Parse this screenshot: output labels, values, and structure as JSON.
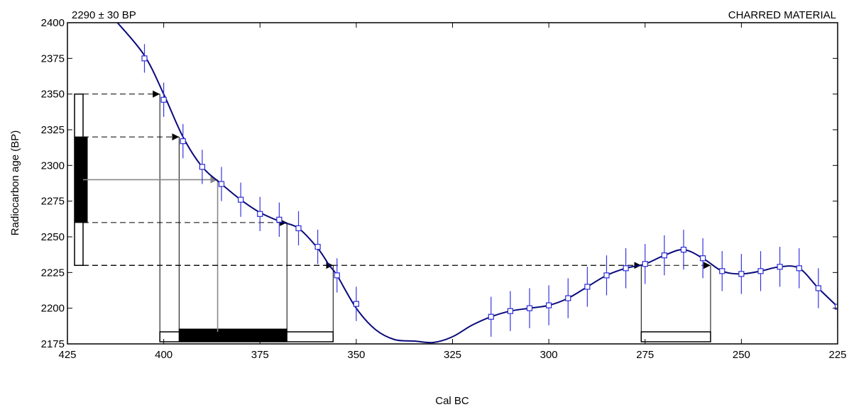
{
  "chart_data": {
    "type": "line",
    "title_left": "2290 ± 30 BP",
    "title_right": "CHARRED MATERIAL",
    "xlabel": "Cal BC",
    "ylabel": "Radiocarbon age (BP)",
    "xlim": [
      425,
      225
    ],
    "ylim": [
      2175,
      2400
    ],
    "x_ticks": [
      425,
      400,
      375,
      350,
      325,
      300,
      275,
      250,
      225
    ],
    "y_ticks": [
      2175,
      2200,
      2225,
      2250,
      2275,
      2300,
      2325,
      2350,
      2375,
      2400
    ],
    "grid": false,
    "curve": {
      "x": [
        412,
        405,
        400,
        395,
        390,
        385,
        380,
        375,
        370,
        365,
        360,
        357,
        355,
        350,
        345,
        340,
        335,
        330,
        325,
        320,
        315,
        310,
        305,
        300,
        295,
        290,
        285,
        280,
        275,
        270,
        265,
        260,
        255,
        250,
        245,
        240,
        235,
        230,
        225
      ],
      "y": [
        2400,
        2377,
        2350,
        2320,
        2299,
        2287,
        2276,
        2267,
        2261,
        2256,
        2242,
        2230,
        2223,
        2200,
        2185,
        2178,
        2177,
        2176,
        2180,
        2188,
        2194,
        2198,
        2200,
        2202,
        2207,
        2215,
        2223,
        2228,
        2231,
        2237,
        2241,
        2235,
        2226,
        2224,
        2226,
        2229,
        2228,
        2214,
        2201
      ]
    },
    "measurements": {
      "x": [
        405,
        400,
        395,
        390,
        385,
        380,
        375,
        370,
        365,
        360,
        355,
        350,
        315,
        310,
        305,
        300,
        295,
        290,
        285,
        280,
        275,
        270,
        265,
        260,
        255,
        250,
        245,
        240,
        235,
        230,
        225
      ],
      "y": [
        2375,
        2346,
        2317,
        2299,
        2287,
        2276,
        2266,
        2262,
        2256,
        2243,
        2223,
        2203,
        2194,
        2198,
        2200,
        2202,
        2207,
        2215,
        2223,
        2228,
        2231,
        2237,
        2241,
        2235,
        2226,
        2224,
        2226,
        2229,
        2228,
        2214,
        2201
      ],
      "err": [
        10,
        12,
        12,
        12,
        12,
        12,
        12,
        12,
        12,
        12,
        12,
        12,
        14,
        14,
        14,
        14,
        14,
        14,
        14,
        14,
        14,
        14,
        14,
        14,
        14,
        14,
        14,
        14,
        14,
        14,
        14
      ]
    },
    "measured_age": 2290,
    "sigma1": [
      2260,
      2320
    ],
    "sigma2": [
      2230,
      2350
    ],
    "intercepts": [
      {
        "age": 2350,
        "cal": 401,
        "style": "dashed"
      },
      {
        "age": 2320,
        "cal": 396,
        "style": "dashed"
      },
      {
        "age": 2290,
        "cal": 386,
        "style": "solid-gray"
      },
      {
        "age": 2260,
        "cal": 368,
        "style": "dashed"
      },
      {
        "age": 2230,
        "cal": 356,
        "style": "dashed"
      },
      {
        "age": 2230,
        "cal": 276,
        "style": "dashed"
      },
      {
        "age": 2230,
        "cal": 258,
        "style": "dashed"
      }
    ],
    "cal_ranges_2sigma": [
      [
        401,
        356
      ],
      [
        276,
        258
      ]
    ],
    "cal_ranges_1sigma": [
      [
        396,
        368
      ]
    ],
    "colors": {
      "curve": "#0a0a7a",
      "markers": "#2a2ad8",
      "error_bars": "#3535e0",
      "intercept_gray": "#888888",
      "black": "#000000"
    }
  }
}
